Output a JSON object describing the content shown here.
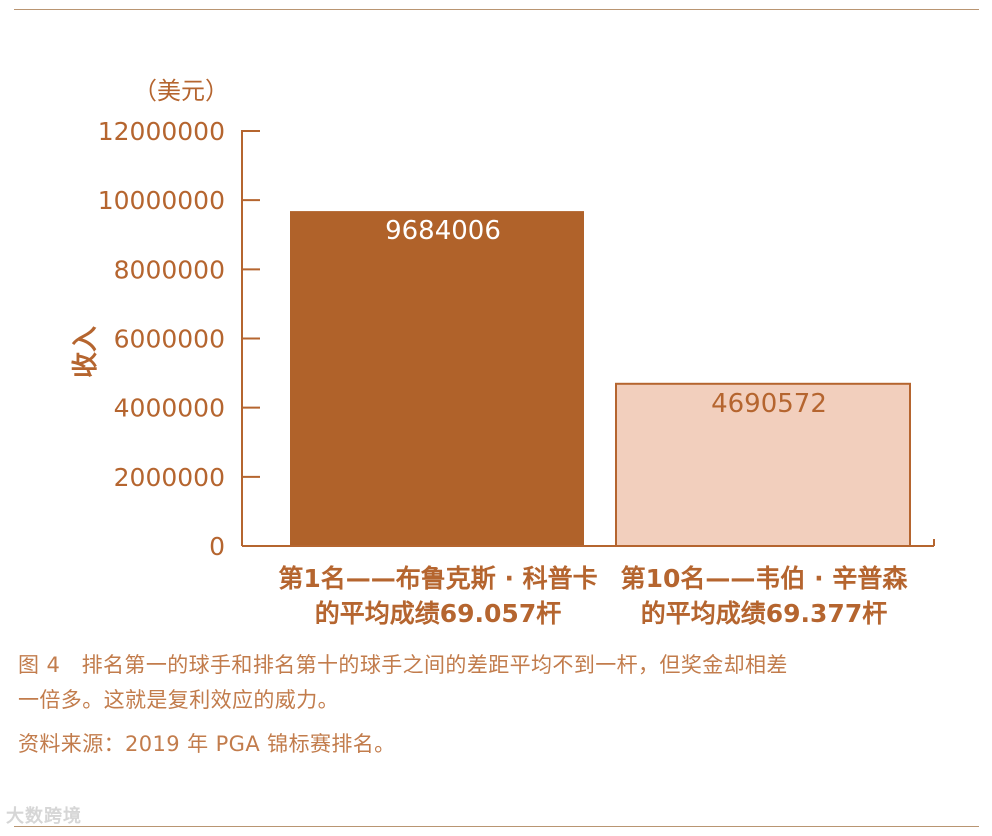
{
  "chart_data": {
    "type": "bar",
    "unit_label": "（美元）",
    "ylabel": "收入",
    "ylim": [
      0,
      12000000
    ],
    "yticks": [
      "12000000",
      "10000000",
      "8000000",
      "6000000",
      "4000000",
      "2000000",
      "0"
    ],
    "categories": [
      [
        "第1名——布鲁克斯 · 科普卡",
        "的平均成绩69.057杆"
      ],
      [
        "第10名——韦伯 · 辛普森",
        "的平均成绩69.377杆"
      ]
    ],
    "values": [
      9684006,
      4690572
    ],
    "data_labels": [
      "9684006",
      "4690572"
    ],
    "colors": [
      "#b0622a",
      "#f2cfbd"
    ],
    "label_colors": [
      "#ffffff",
      "#b5652f"
    ],
    "axis_color": "#b5652f"
  },
  "caption": {
    "line1": "图 4　排名第一的球手和排名第十的球手之间的差距平均不到一杆，但奖金却相差",
    "line2": "一倍多。这就是复利效应的威力。",
    "line3": "资料来源：2019 年 PGA 锦标赛排名。"
  },
  "watermark": "大数跨境"
}
